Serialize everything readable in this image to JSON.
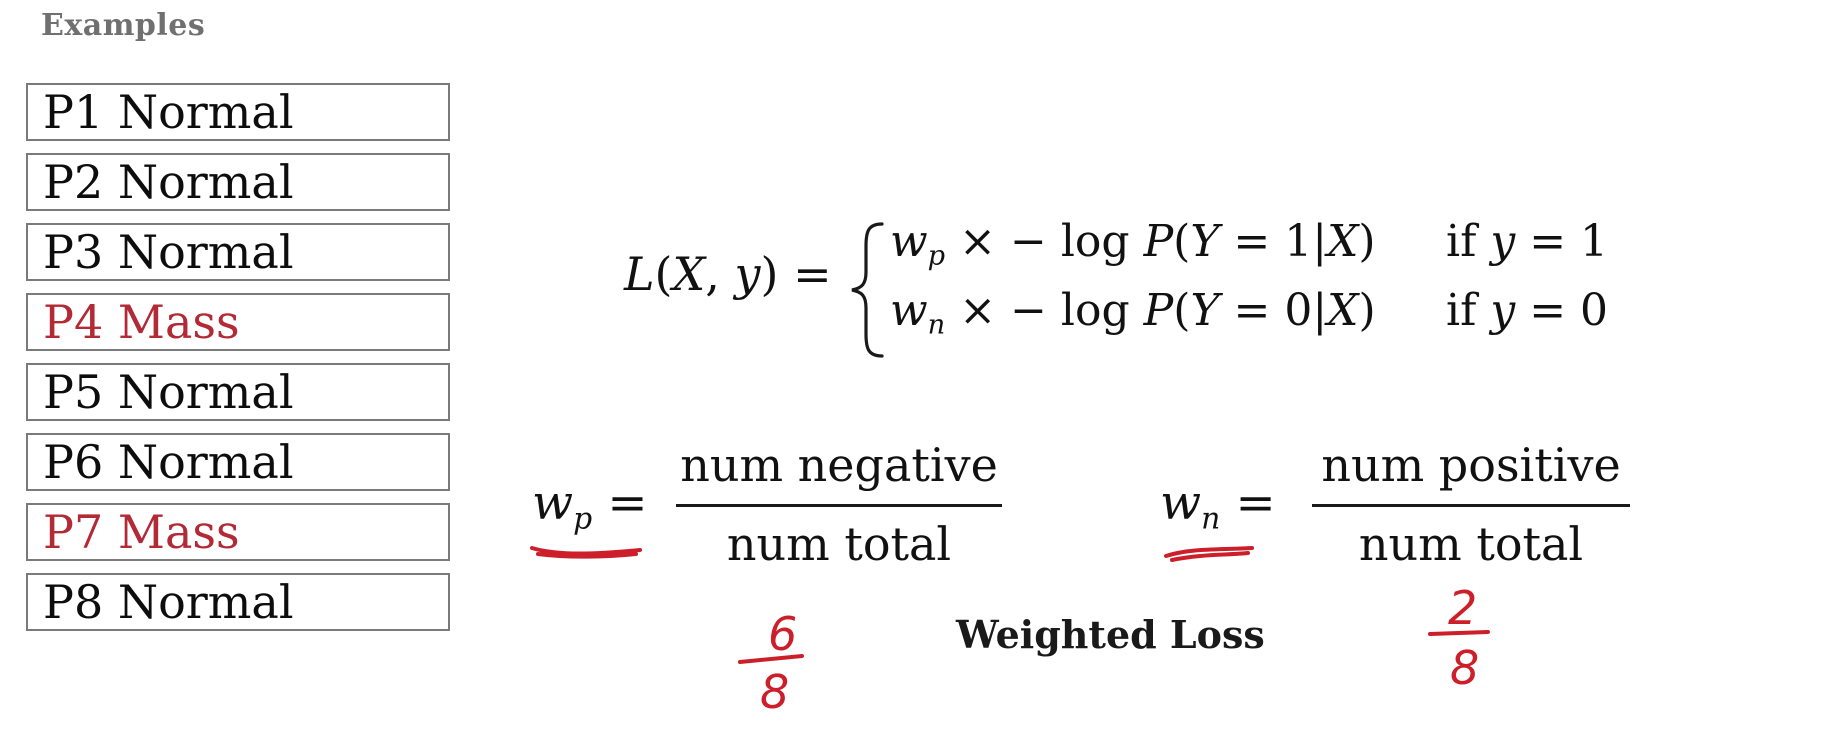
{
  "examples": {
    "heading": "Examples",
    "items": [
      {
        "label": "P1 Normal",
        "kind": "normal"
      },
      {
        "label": "P2 Normal",
        "kind": "normal"
      },
      {
        "label": "P3 Normal",
        "kind": "normal"
      },
      {
        "label": "P4 Mass",
        "kind": "mass"
      },
      {
        "label": "P5 Normal",
        "kind": "normal"
      },
      {
        "label": "P6 Normal",
        "kind": "normal"
      },
      {
        "label": "P7 Mass",
        "kind": "mass"
      },
      {
        "label": "P8 Normal",
        "kind": "normal"
      }
    ],
    "colors": {
      "normal": "#0d0d0d",
      "mass": "#b22a36"
    }
  },
  "formula": {
    "lhs": "L(X, y) =",
    "cases": [
      {
        "expression": "w_p × − log P(Y = 1|X)",
        "condition": "if y = 1"
      },
      {
        "expression": "w_n × − log P(Y = 0|X)",
        "condition": "if y = 0"
      }
    ]
  },
  "weights": {
    "positive": {
      "label": "w_p =",
      "numerator": "num negative",
      "denominator": "num total",
      "handwritten_numerator": "6",
      "handwritten_denominator": "8"
    },
    "negative": {
      "label": "w_n =",
      "numerator": "num positive",
      "denominator": "num total",
      "handwritten_numerator": "2",
      "handwritten_denominator": "8"
    }
  },
  "caption": "Weighted Loss",
  "annotation_color": "#cc1f2a"
}
